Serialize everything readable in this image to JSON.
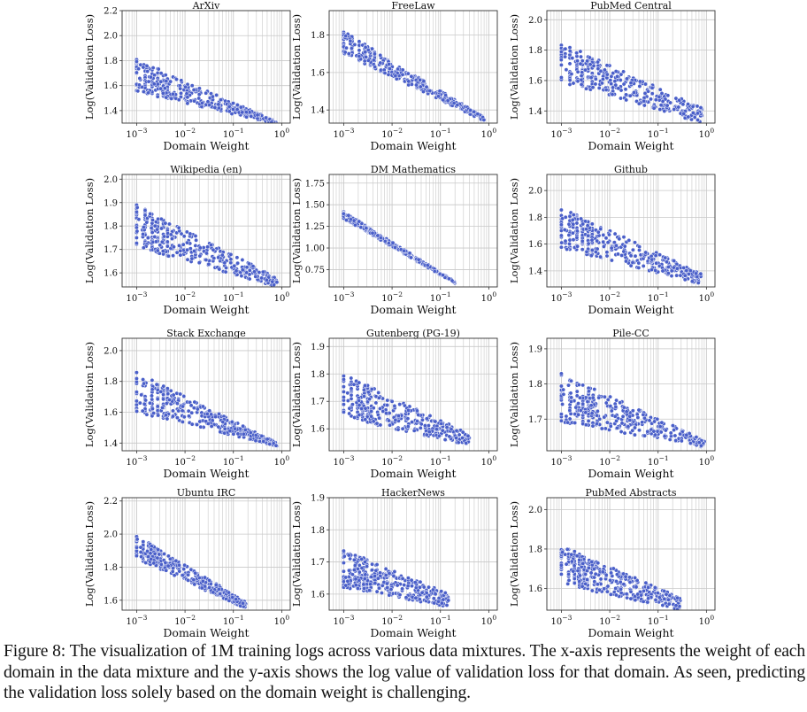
{
  "caption": "Figure 8: The visualization of 1M training logs across various data mixtures. The x-axis represents the weight of each domain in the data mixture and the y-axis shows the log value of validation loss for that domain. As seen, predicting the validation loss solely based on the domain weight is challenging.",
  "colors": {
    "point": "#4a5fc9",
    "point_edge": "#ffffff",
    "grid": "#c8c8c8",
    "axes": "#333333"
  },
  "chart_data": [
    {
      "type": "scatter",
      "title": "ArXiv",
      "xlabel": "Domain Weight",
      "ylabel": "Log(Validation Loss)",
      "xscale": "log",
      "xlim": [
        0.0005,
        1.5
      ],
      "xticks": [
        "10^-3",
        "10^-2",
        "10^-1",
        "10^0"
      ],
      "ylim": [
        1.3,
        2.2
      ],
      "yticks": [
        "1.4",
        "1.6",
        "1.8",
        "2.0",
        "2.2"
      ],
      "grid": true,
      "trend": {
        "x_range": [
          0.001,
          0.8
        ],
        "y_at_min": 1.68,
        "y_at_max": 1.3,
        "spread_at_min": 0.13,
        "spread_at_max": 0.01
      }
    },
    {
      "type": "scatter",
      "title": "FreeLaw",
      "xlabel": "Domain Weight",
      "ylabel": "Log(Validation Loss)",
      "xscale": "log",
      "xlim": [
        0.0005,
        1.5
      ],
      "xticks": [
        "10^-3",
        "10^-2",
        "10^-1",
        "10^0"
      ],
      "ylim": [
        1.33,
        1.93
      ],
      "yticks": [
        "1.4",
        "1.6",
        "1.8"
      ],
      "grid": true,
      "trend": {
        "x_range": [
          0.001,
          0.8
        ],
        "y_at_min": 1.76,
        "y_at_max": 1.35,
        "spread_at_min": 0.06,
        "spread_at_max": 0.01
      }
    },
    {
      "type": "scatter",
      "title": "PubMed Central",
      "xlabel": "Domain Weight",
      "ylabel": "Log(Validation Loss)",
      "xscale": "log",
      "xlim": [
        0.0005,
        1.5
      ],
      "xticks": [
        "10^-3",
        "10^-2",
        "10^-1",
        "10^0"
      ],
      "ylim": [
        1.32,
        2.06
      ],
      "yticks": [
        "1.4",
        "1.6",
        "1.8",
        "2.0"
      ],
      "grid": true,
      "trend": {
        "x_range": [
          0.001,
          0.8
        ],
        "y_at_min": 1.72,
        "y_at_max": 1.37,
        "spread_at_min": 0.13,
        "spread_at_max": 0.05
      }
    },
    {
      "type": "scatter",
      "title": "Wikipedia (en)",
      "xlabel": "Domain Weight",
      "ylabel": "Log(Validation Loss)",
      "xscale": "log",
      "xlim": [
        0.0005,
        1.5
      ],
      "xticks": [
        "10^-3",
        "10^-2",
        "10^-1",
        "10^0"
      ],
      "ylim": [
        1.54,
        2.02
      ],
      "yticks": [
        "1.6",
        "1.7",
        "1.8",
        "1.9",
        "2.0"
      ],
      "grid": true,
      "trend": {
        "x_range": [
          0.001,
          0.8
        ],
        "y_at_min": 1.8,
        "y_at_max": 1.56,
        "spread_at_min": 0.09,
        "spread_at_max": 0.02
      }
    },
    {
      "type": "scatter",
      "title": "DM Mathematics",
      "xlabel": "Domain Weight",
      "ylabel": "Log(Validation Loss)",
      "xscale": "log",
      "xlim": [
        0.0005,
        1.5
      ],
      "xticks": [
        "10^-3",
        "10^-2",
        "10^-1",
        "10^0"
      ],
      "ylim": [
        0.55,
        1.85
      ],
      "yticks": [
        "0.75",
        "1.00",
        "1.25",
        "1.50",
        "1.75"
      ],
      "grid": true,
      "trend": {
        "x_range": [
          0.001,
          0.2
        ],
        "y_at_min": 1.38,
        "y_at_max": 0.6,
        "spread_at_min": 0.04,
        "spread_at_max": 0.01
      }
    },
    {
      "type": "scatter",
      "title": "Github",
      "xlabel": "Domain Weight",
      "ylabel": "Log(Validation Loss)",
      "xscale": "log",
      "xlim": [
        0.0005,
        1.5
      ],
      "xticks": [
        "10^-3",
        "10^-2",
        "10^-1",
        "10^0"
      ],
      "ylim": [
        1.28,
        2.12
      ],
      "yticks": [
        "1.4",
        "1.6",
        "1.8",
        "2.0"
      ],
      "grid": true,
      "trend": {
        "x_range": [
          0.001,
          0.8
        ],
        "y_at_min": 1.72,
        "y_at_max": 1.34,
        "spread_at_min": 0.15,
        "spread_at_max": 0.04
      }
    },
    {
      "type": "scatter",
      "title": "Stack Exchange",
      "xlabel": "Domain Weight",
      "ylabel": "Log(Validation Loss)",
      "xscale": "log",
      "xlim": [
        0.0005,
        1.5
      ],
      "xticks": [
        "10^-3",
        "10^-2",
        "10^-1",
        "10^0"
      ],
      "ylim": [
        1.35,
        2.08
      ],
      "yticks": [
        "1.4",
        "1.6",
        "1.8",
        "2.0"
      ],
      "grid": true,
      "trend": {
        "x_range": [
          0.001,
          0.8
        ],
        "y_at_min": 1.73,
        "y_at_max": 1.39,
        "spread_at_min": 0.13,
        "spread_at_max": 0.01
      }
    },
    {
      "type": "scatter",
      "title": "Gutenberg (PG-19)",
      "xlabel": "Domain Weight",
      "ylabel": "Log(Validation Loss)",
      "xscale": "log",
      "xlim": [
        0.0005,
        1.5
      ],
      "xticks": [
        "10^-3",
        "10^-2",
        "10^-1",
        "10^0"
      ],
      "ylim": [
        1.52,
        1.93
      ],
      "yticks": [
        "1.6",
        "1.7",
        "1.8",
        "1.9"
      ],
      "grid": true,
      "trend": {
        "x_range": [
          0.001,
          0.4
        ],
        "y_at_min": 1.72,
        "y_at_max": 1.56,
        "spread_at_min": 0.08,
        "spread_at_max": 0.02
      }
    },
    {
      "type": "scatter",
      "title": "Pile-CC",
      "xlabel": "Domain Weight",
      "ylabel": "Log(Validation Loss)",
      "xscale": "log",
      "xlim": [
        0.0005,
        1.5
      ],
      "xticks": [
        "10^-3",
        "10^-2",
        "10^-1",
        "10^0"
      ],
      "ylim": [
        1.61,
        1.93
      ],
      "yticks": [
        "1.7",
        "1.8",
        "1.9"
      ],
      "grid": true,
      "trend": {
        "x_range": [
          0.001,
          0.9
        ],
        "y_at_min": 1.76,
        "y_at_max": 1.63,
        "spread_at_min": 0.07,
        "spread_at_max": 0.01
      }
    },
    {
      "type": "scatter",
      "title": "Ubuntu IRC",
      "xlabel": "Domain Weight",
      "ylabel": "Log(Validation Loss)",
      "xscale": "log",
      "xlim": [
        0.0005,
        1.5
      ],
      "xticks": [
        "10^-3",
        "10^-2",
        "10^-1",
        "10^0"
      ],
      "ylim": [
        1.54,
        2.22
      ],
      "yticks": [
        "1.6",
        "1.8",
        "2.0",
        "2.2"
      ],
      "grid": true,
      "trend": {
        "x_range": [
          0.001,
          0.18
        ],
        "y_at_min": 1.92,
        "y_at_max": 1.57,
        "spread_at_min": 0.07,
        "spread_at_max": 0.02
      }
    },
    {
      "type": "scatter",
      "title": "HackerNews",
      "xlabel": "Domain Weight",
      "ylabel": "Log(Validation Loss)",
      "xscale": "log",
      "xlim": [
        0.0005,
        1.5
      ],
      "xticks": [
        "10^-3",
        "10^-2",
        "10^-1",
        "10^0"
      ],
      "ylim": [
        1.55,
        1.9
      ],
      "yticks": [
        "1.6",
        "1.7",
        "1.8",
        "1.9"
      ],
      "grid": true,
      "trend": {
        "x_range": [
          0.001,
          0.15
        ],
        "y_at_min": 1.68,
        "y_at_max": 1.58,
        "spread_at_min": 0.06,
        "spread_at_max": 0.02
      }
    },
    {
      "type": "scatter",
      "title": "PubMed Abstracts",
      "xlabel": "Domain Weight",
      "ylabel": "Log(Validation Loss)",
      "xscale": "log",
      "xlim": [
        0.0005,
        1.5
      ],
      "xticks": [
        "10^-3",
        "10^-2",
        "10^-1",
        "10^0"
      ],
      "ylim": [
        1.49,
        2.06
      ],
      "yticks": [
        "1.6",
        "1.8",
        "2.0"
      ],
      "grid": true,
      "trend": {
        "x_range": [
          0.001,
          0.3
        ],
        "y_at_min": 1.72,
        "y_at_max": 1.52,
        "spread_at_min": 0.1,
        "spread_at_max": 0.03
      }
    }
  ]
}
